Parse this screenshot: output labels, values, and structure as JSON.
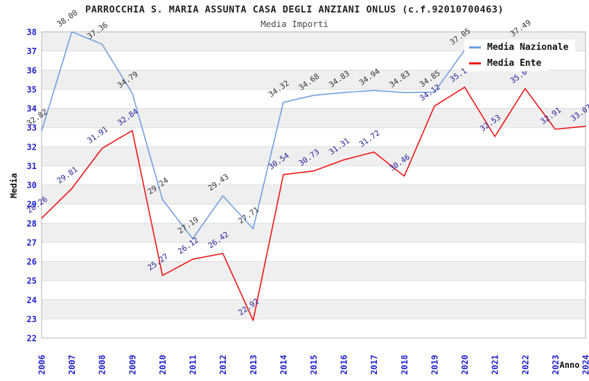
{
  "title": "PARROCCHIA S. MARIA ASSUNTA CASA DEGLI ANZIANI ONLUS (c.f.92010700463)",
  "subtitle": "Media Importi",
  "legend": {
    "items": [
      {
        "label": "Media Nazionale",
        "color": "#6f9fe0"
      },
      {
        "label": "Media Ente",
        "color": "#ee1111"
      }
    ]
  },
  "chart_data": {
    "type": "line",
    "title": "Media Importi",
    "xlabel": "Anno",
    "ylabel": "Media",
    "ylim": [
      22,
      38
    ],
    "y_tick_step": 1,
    "grid": "horizontal-bands",
    "legend_position": "top-right-inside",
    "band_color": "#efefef",
    "gridline_color": "#dddddd",
    "border_color": "#b3b3b3",
    "tick_label_color": "#2222cc",
    "x": [
      2006,
      2007,
      2008,
      2009,
      2010,
      2011,
      2012,
      2013,
      2014,
      2015,
      2016,
      2017,
      2018,
      2019,
      2020,
      2021,
      2022,
      2023,
      2024
    ],
    "series": [
      {
        "name": "Media Nazionale",
        "color": "#6f9fe0",
        "label_color": "#333333",
        "values": [
          32.82,
          38.0,
          37.36,
          34.79,
          29.24,
          27.19,
          29.43,
          27.71,
          34.32,
          34.68,
          34.83,
          34.94,
          34.83,
          34.85,
          37.05,
          null,
          37.49,
          null,
          null
        ]
      },
      {
        "name": "Media Ente",
        "color": "#ee1111",
        "label_color": "#222299",
        "values": [
          28.26,
          29.81,
          31.91,
          32.84,
          25.27,
          26.12,
          26.42,
          22.92,
          30.54,
          30.73,
          31.31,
          31.72,
          30.46,
          34.12,
          35.11,
          32.53,
          35.04,
          32.91,
          33.07
        ]
      }
    ]
  }
}
